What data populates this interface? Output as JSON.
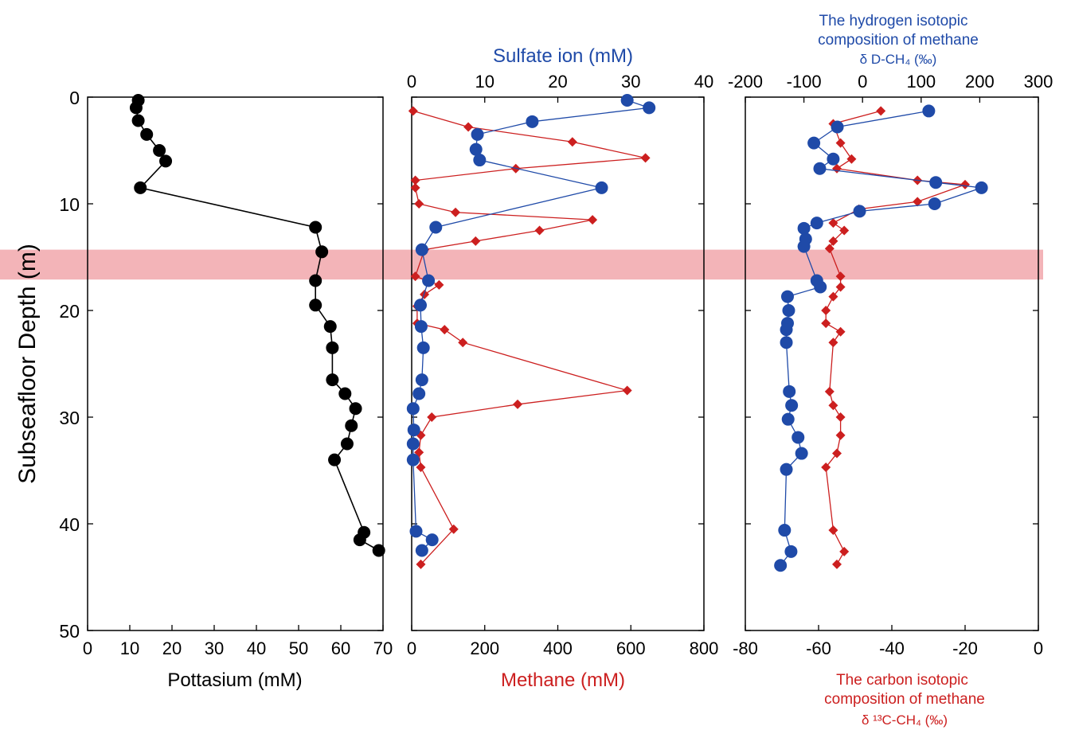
{
  "colors": {
    "black": "#000000",
    "blue": "#1f4aa8",
    "red": "#cc1f1f",
    "band": "#f1a7ac",
    "axis": "#000000"
  },
  "y_axis": {
    "label": "Subseafloor Depth  (m)",
    "ticks": [
      0,
      10,
      20,
      30,
      40,
      50
    ],
    "range": [
      0,
      50
    ],
    "reversed": true
  },
  "panel1": {
    "xlabel": "Pottasium (mM)",
    "xticks": [
      0,
      10,
      20,
      30,
      40,
      50,
      60,
      70
    ]
  },
  "panel2": {
    "top_label": "Sulfate ion (mM)",
    "top_ticks": [
      0,
      10,
      20,
      30,
      40
    ],
    "bottom_label": "Methane (mM)",
    "bottom_ticks": [
      0,
      200,
      400,
      600,
      800
    ]
  },
  "panel3": {
    "top_label": [
      "The hydrogen isotopic",
      "composition of methane",
      "δ D-CH₄ (‰)"
    ],
    "top_ticks": [
      -200,
      -100,
      0,
      100,
      200,
      300
    ],
    "bottom_label": [
      "The carbon isotopic",
      "composition of methane",
      "δ ¹³C-CH₄ (‰)"
    ],
    "bottom_ticks": [
      -80,
      -60,
      -40,
      -20,
      0
    ]
  },
  "chart_data": [
    {
      "type": "line",
      "panel": 1,
      "xlabel": "Pottasium (mM)",
      "ylabel": "Subseafloor Depth  (m)",
      "xlim": [
        0,
        70
      ],
      "ylim": [
        50,
        0
      ],
      "series": [
        {
          "color": "#000000",
          "marker": "circle",
          "points": [
            [
              12,
              0.3
            ],
            [
              11.5,
              1.0
            ],
            [
              12,
              2.2
            ],
            [
              14,
              3.5
            ],
            [
              17,
              5.0
            ],
            [
              18.5,
              6.0
            ],
            [
              12.5,
              8.5
            ],
            [
              54,
              12.2
            ],
            [
              55.5,
              14.5
            ],
            [
              54,
              17.2
            ],
            [
              54,
              19.5
            ],
            [
              57.5,
              21.5
            ],
            [
              58,
              23.5
            ],
            [
              58,
              26.5
            ],
            [
              61,
              27.8
            ],
            [
              63.5,
              29.2
            ],
            [
              62.5,
              30.8
            ],
            [
              61.5,
              32.5
            ],
            [
              58.5,
              34.0
            ],
            [
              65.5,
              40.8
            ],
            [
              64.5,
              41.5
            ],
            [
              69,
              42.5
            ]
          ]
        }
      ]
    },
    {
      "type": "line",
      "panel": 2,
      "xlabel_top": "Sulfate ion (mM)",
      "xlim_top": [
        0,
        40
      ],
      "xlabel_bottom": "Methane (mM)",
      "xlim_bottom": [
        0,
        800
      ],
      "ylim": [
        50,
        0
      ],
      "series": [
        {
          "name": "Sulfate ion (mM)",
          "color": "#1f4aa8",
          "marker": "circle",
          "points": [
            [
              29.5,
              0.3
            ],
            [
              32.5,
              1.0
            ],
            [
              16.5,
              2.3
            ],
            [
              9,
              3.5
            ],
            [
              8.8,
              4.9
            ],
            [
              9.3,
              5.9
            ],
            [
              26,
              8.5
            ],
            [
              3.3,
              12.2
            ],
            [
              1.4,
              14.3
            ],
            [
              2.3,
              17.2
            ],
            [
              1.2,
              19.5
            ],
            [
              1.3,
              21.5
            ],
            [
              1.6,
              23.5
            ],
            [
              1.4,
              26.5
            ],
            [
              1.0,
              27.8
            ],
            [
              0.2,
              29.2
            ],
            [
              0.3,
              31.2
            ],
            [
              0.2,
              32.5
            ],
            [
              0.2,
              34.0
            ],
            [
              0.6,
              40.7
            ],
            [
              2.8,
              41.5
            ],
            [
              1.4,
              42.5
            ]
          ]
        },
        {
          "name": "Methane (mM)",
          "color": "#cc1f1f",
          "marker": "diamond",
          "points": [
            [
              4,
              1.3
            ],
            [
              155,
              2.8
            ],
            [
              440,
              4.2
            ],
            [
              640,
              5.7
            ],
            [
              285,
              6.7
            ],
            [
              10,
              7.8
            ],
            [
              10,
              8.5
            ],
            [
              20,
              10.0
            ],
            [
              120,
              10.8
            ],
            [
              495,
              11.5
            ],
            [
              350,
              12.5
            ],
            [
              175,
              13.5
            ],
            [
              35,
              14.3
            ],
            [
              10,
              16.8
            ],
            [
              75,
              17.6
            ],
            [
              35,
              18.5
            ],
            [
              15,
              19.6
            ],
            [
              15,
              21.2
            ],
            [
              90,
              21.8
            ],
            [
              140,
              23.0
            ],
            [
              590,
              27.5
            ],
            [
              290,
              28.8
            ],
            [
              55,
              30.0
            ],
            [
              25,
              31.7
            ],
            [
              20,
              33.3
            ],
            [
              25,
              34.7
            ],
            [
              115,
              40.5
            ],
            [
              25,
              43.8
            ]
          ]
        }
      ]
    },
    {
      "type": "line",
      "panel": 3,
      "xlabel_top": "The hydrogen isotopic composition of methane δ D-CH₄ (‰)",
      "xlim_top": [
        -200,
        300
      ],
      "xlabel_bottom": "The carbon isotopic composition of methane δ ¹³C-CH₄ (‰)",
      "xlim_bottom": [
        -80,
        0
      ],
      "ylim": [
        50,
        0
      ],
      "series": [
        {
          "name": "δ D-CH₄ (‰)",
          "color": "#1f4aa8",
          "marker": "circle",
          "points": [
            [
              113,
              1.3
            ],
            [
              -43,
              2.8
            ],
            [
              -83,
              4.3
            ],
            [
              -50,
              5.8
            ],
            [
              -73,
              6.7
            ],
            [
              125,
              8.0
            ],
            [
              203,
              8.5
            ],
            [
              123,
              10.0
            ],
            [
              -5,
              10.7
            ],
            [
              -78,
              11.8
            ],
            [
              -100,
              12.3
            ],
            [
              -97,
              13.3
            ],
            [
              -100,
              14.0
            ],
            [
              -78,
              17.2
            ],
            [
              -72,
              17.8
            ],
            [
              -128,
              18.7
            ],
            [
              -126,
              20.0
            ],
            [
              -128,
              21.2
            ],
            [
              -130,
              21.8
            ],
            [
              -130,
              23.0
            ],
            [
              -125,
              27.6
            ],
            [
              -121,
              28.9
            ],
            [
              -127,
              30.2
            ],
            [
              -110,
              31.9
            ],
            [
              -104,
              33.4
            ],
            [
              -130,
              34.9
            ],
            [
              -133,
              40.6
            ],
            [
              -122,
              42.6
            ],
            [
              -140,
              43.9
            ]
          ]
        },
        {
          "name": "δ ¹³C-CH₄ (‰)",
          "color": "#cc1f1f",
          "marker": "diamond",
          "points": [
            [
              -43,
              1.3
            ],
            [
              -56,
              2.5
            ],
            [
              -54,
              4.3
            ],
            [
              -51,
              5.8
            ],
            [
              -55,
              6.7
            ],
            [
              -33,
              7.8
            ],
            [
              -20,
              8.2
            ],
            [
              -33,
              9.8
            ],
            [
              -49,
              10.5
            ],
            [
              -56,
              11.8
            ],
            [
              -53,
              12.5
            ],
            [
              -56,
              13.5
            ],
            [
              -57,
              14.2
            ],
            [
              -54,
              16.8
            ],
            [
              -54,
              17.8
            ],
            [
              -56,
              18.7
            ],
            [
              -58,
              20.0
            ],
            [
              -58,
              21.2
            ],
            [
              -54,
              22.0
            ],
            [
              -56,
              23.0
            ],
            [
              -57,
              27.6
            ],
            [
              -56,
              28.9
            ],
            [
              -54,
              30.0
            ],
            [
              -54,
              31.7
            ],
            [
              -55,
              33.4
            ],
            [
              -58,
              34.7
            ],
            [
              -56,
              40.6
            ],
            [
              -53,
              42.6
            ],
            [
              -55,
              43.8
            ]
          ]
        }
      ]
    }
  ]
}
